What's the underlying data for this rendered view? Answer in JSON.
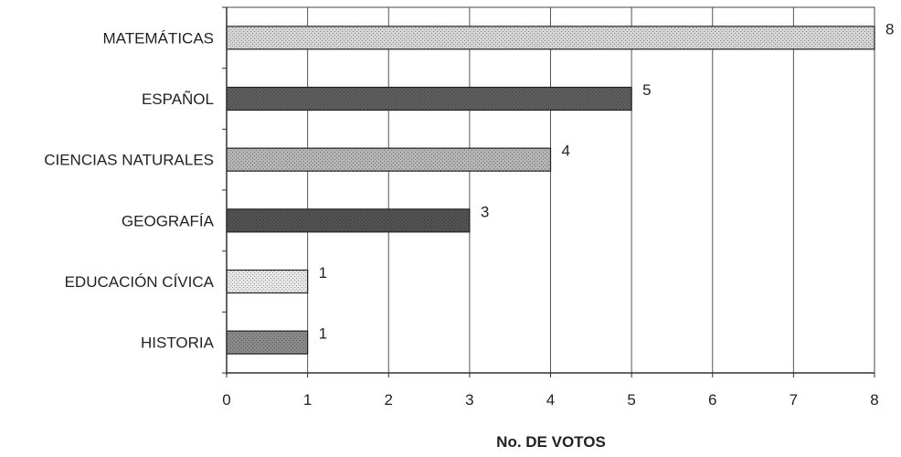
{
  "chart_data": {
    "type": "bar",
    "orientation": "horizontal",
    "categories": [
      "MATEMÁTICAS",
      "ESPAÑOL",
      "CIENCIAS NATURALES",
      "GEOGRAFÍA",
      "EDUCACIÓN CÍVICA",
      "HISTORIA"
    ],
    "values": [
      8,
      5,
      4,
      3,
      1,
      1
    ],
    "data_labels": [
      "8",
      "5",
      "4",
      "3",
      "1",
      "1"
    ],
    "title": "",
    "xlabel": "No. DE VOTOS",
    "ylabel": "",
    "xlim": [
      0,
      8
    ],
    "xticks": [
      "0",
      "1",
      "2",
      "3",
      "4",
      "5",
      "6",
      "7",
      "8"
    ],
    "grid": "vertical",
    "legend": "none",
    "bar_fill_colors": [
      "#d4d4d4",
      "#5e5e5e",
      "#b4b4b4",
      "#525252",
      "#e6e6e6",
      "#8a8a8a"
    ]
  }
}
